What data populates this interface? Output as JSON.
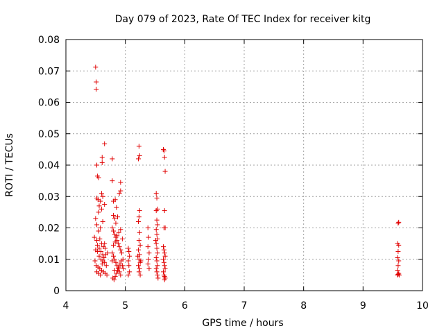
{
  "chart_data": {
    "type": "scatter",
    "title": "Day 079 of 2023, Rate Of TEC Index for receiver kitg",
    "xlabel": "GPS time / hours",
    "ylabel": "ROTI / TECUs",
    "xlim": [
      4,
      10
    ],
    "ylim": [
      0,
      0.08
    ],
    "xticks": [
      "4",
      "5",
      "6",
      "7",
      "8",
      "9",
      "10"
    ],
    "yticks": [
      "0",
      "0.01",
      "0.02",
      "0.03",
      "0.04",
      "0.05",
      "0.06",
      "0.07",
      "0.08"
    ],
    "grid": true,
    "marker": "+",
    "series": [
      {
        "name": "ROTI",
        "color": "#e00000",
        "points": [
          [
            4.5,
            0.0712
          ],
          [
            4.51,
            0.0665
          ],
          [
            4.51,
            0.0642
          ],
          [
            4.52,
            0.04
          ],
          [
            4.53,
            0.0365
          ],
          [
            4.55,
            0.036
          ],
          [
            4.61,
            0.0408
          ],
          [
            4.61,
            0.0425
          ],
          [
            4.65,
            0.0468
          ],
          [
            4.78,
            0.042
          ],
          [
            4.78,
            0.035
          ],
          [
            4.92,
            0.0345
          ],
          [
            4.92,
            0.0318
          ],
          [
            4.9,
            0.031
          ],
          [
            4.52,
            0.0295
          ],
          [
            4.54,
            0.029
          ],
          [
            4.58,
            0.0285
          ],
          [
            4.6,
            0.031
          ],
          [
            4.62,
            0.03
          ],
          [
            4.56,
            0.027
          ],
          [
            4.6,
            0.026
          ],
          [
            4.55,
            0.025
          ],
          [
            4.65,
            0.0275
          ],
          [
            4.8,
            0.0285
          ],
          [
            4.83,
            0.029
          ],
          [
            4.85,
            0.0265
          ],
          [
            4.8,
            0.024
          ],
          [
            4.82,
            0.023
          ],
          [
            4.84,
            0.0215
          ],
          [
            4.87,
            0.0235
          ],
          [
            4.5,
            0.023
          ],
          [
            4.52,
            0.021
          ],
          [
            4.58,
            0.02
          ],
          [
            4.62,
            0.022
          ],
          [
            4.55,
            0.019
          ],
          [
            4.48,
            0.017
          ],
          [
            4.52,
            0.016
          ],
          [
            4.57,
            0.0165
          ],
          [
            4.6,
            0.015
          ],
          [
            4.63,
            0.014
          ],
          [
            4.66,
            0.0135
          ],
          [
            4.7,
            0.012
          ],
          [
            4.5,
            0.013
          ],
          [
            4.53,
            0.0125
          ],
          [
            4.56,
            0.011
          ],
          [
            4.59,
            0.01
          ],
          [
            4.62,
            0.0095
          ],
          [
            4.65,
            0.009
          ],
          [
            4.51,
            0.008
          ],
          [
            4.54,
            0.0075
          ],
          [
            4.57,
            0.007
          ],
          [
            4.6,
            0.0065
          ],
          [
            4.63,
            0.006
          ],
          [
            4.66,
            0.0055
          ],
          [
            4.69,
            0.005
          ],
          [
            4.52,
            0.006
          ],
          [
            4.55,
            0.0055
          ],
          [
            4.58,
            0.005
          ],
          [
            4.61,
            0.0085
          ],
          [
            4.64,
            0.0105
          ],
          [
            4.67,
            0.0115
          ],
          [
            4.49,
            0.0095
          ],
          [
            4.53,
            0.0145
          ],
          [
            4.56,
            0.0135
          ],
          [
            4.59,
            0.0125
          ],
          [
            4.62,
            0.0115
          ],
          [
            4.65,
            0.015
          ],
          [
            4.68,
            0.008
          ],
          [
            4.78,
            0.02
          ],
          [
            4.8,
            0.019
          ],
          [
            4.82,
            0.018
          ],
          [
            4.84,
            0.017
          ],
          [
            4.86,
            0.016
          ],
          [
            4.88,
            0.015
          ],
          [
            4.9,
            0.014
          ],
          [
            4.92,
            0.013
          ],
          [
            4.78,
            0.012
          ],
          [
            4.8,
            0.011
          ],
          [
            4.82,
            0.01
          ],
          [
            4.84,
            0.009
          ],
          [
            4.86,
            0.008
          ],
          [
            4.88,
            0.007
          ],
          [
            4.9,
            0.006
          ],
          [
            4.92,
            0.005
          ],
          [
            4.79,
            0.004
          ],
          [
            4.81,
            0.0035
          ],
          [
            4.83,
            0.0045
          ],
          [
            4.85,
            0.0055
          ],
          [
            4.87,
            0.0065
          ],
          [
            4.89,
            0.0075
          ],
          [
            4.91,
            0.0085
          ],
          [
            4.93,
            0.0095
          ],
          [
            4.8,
            0.0145
          ],
          [
            4.83,
            0.0155
          ],
          [
            4.86,
            0.0175
          ],
          [
            4.89,
            0.0185
          ],
          [
            4.92,
            0.0195
          ],
          [
            4.95,
            0.0165
          ],
          [
            4.94,
            0.012
          ],
          [
            4.96,
            0.01
          ],
          [
            4.95,
            0.008
          ],
          [
            4.97,
            0.007
          ],
          [
            4.78,
            0.0095
          ],
          [
            4.82,
            0.0065
          ],
          [
            5.05,
            0.0135
          ],
          [
            5.06,
            0.0125
          ],
          [
            5.07,
            0.011
          ],
          [
            5.05,
            0.0095
          ],
          [
            5.06,
            0.008
          ],
          [
            5.07,
            0.006
          ],
          [
            5.05,
            0.005
          ],
          [
            5.23,
            0.046
          ],
          [
            5.24,
            0.043
          ],
          [
            5.22,
            0.042
          ],
          [
            5.24,
            0.0255
          ],
          [
            5.23,
            0.0235
          ],
          [
            5.22,
            0.022
          ],
          [
            5.24,
            0.0185
          ],
          [
            5.23,
            0.016
          ],
          [
            5.25,
            0.0145
          ],
          [
            5.22,
            0.013
          ],
          [
            5.24,
            0.0115
          ],
          [
            5.23,
            0.01
          ],
          [
            5.25,
            0.009
          ],
          [
            5.22,
            0.008
          ],
          [
            5.24,
            0.007
          ],
          [
            5.23,
            0.006
          ],
          [
            5.25,
            0.005
          ],
          [
            5.21,
            0.011
          ],
          [
            5.26,
            0.0095
          ],
          [
            5.38,
            0.02
          ],
          [
            5.39,
            0.017
          ],
          [
            5.38,
            0.014
          ],
          [
            5.4,
            0.012
          ],
          [
            5.39,
            0.01
          ],
          [
            5.38,
            0.0085
          ],
          [
            5.4,
            0.007
          ],
          [
            5.52,
            0.031
          ],
          [
            5.53,
            0.0295
          ],
          [
            5.54,
            0.026
          ],
          [
            5.52,
            0.0255
          ],
          [
            5.53,
            0.0225
          ],
          [
            5.54,
            0.021
          ],
          [
            5.52,
            0.0195
          ],
          [
            5.53,
            0.018
          ],
          [
            5.54,
            0.0165
          ],
          [
            5.52,
            0.015
          ],
          [
            5.53,
            0.0135
          ],
          [
            5.54,
            0.012
          ],
          [
            5.52,
            0.0105
          ],
          [
            5.53,
            0.0095
          ],
          [
            5.54,
            0.008
          ],
          [
            5.52,
            0.007
          ],
          [
            5.53,
            0.006
          ],
          [
            5.54,
            0.005
          ],
          [
            5.55,
            0.004
          ],
          [
            5.51,
            0.016
          ],
          [
            5.64,
            0.045
          ],
          [
            5.65,
            0.0445
          ],
          [
            5.66,
            0.0425
          ],
          [
            5.67,
            0.038
          ],
          [
            5.66,
            0.0255
          ],
          [
            5.65,
            0.02
          ],
          [
            5.67,
            0.02
          ],
          [
            5.64,
            0.014
          ],
          [
            5.65,
            0.013
          ],
          [
            5.66,
            0.012
          ],
          [
            5.67,
            0.011
          ],
          [
            5.64,
            0.01
          ],
          [
            5.65,
            0.009
          ],
          [
            5.66,
            0.008
          ],
          [
            5.67,
            0.007
          ],
          [
            5.64,
            0.006
          ],
          [
            5.65,
            0.005
          ],
          [
            5.66,
            0.0045
          ],
          [
            5.67,
            0.004
          ],
          [
            5.66,
            0.0035
          ],
          [
            9.59,
            0.0215
          ],
          [
            9.6,
            0.0218
          ],
          [
            9.58,
            0.015
          ],
          [
            9.6,
            0.0145
          ],
          [
            9.59,
            0.0125
          ],
          [
            9.58,
            0.0105
          ],
          [
            9.6,
            0.0095
          ],
          [
            9.59,
            0.008
          ],
          [
            9.58,
            0.0065
          ],
          [
            9.6,
            0.0055
          ],
          [
            9.59,
            0.0052
          ],
          [
            9.58,
            0.005
          ],
          [
            9.61,
            0.005
          ]
        ]
      }
    ]
  }
}
